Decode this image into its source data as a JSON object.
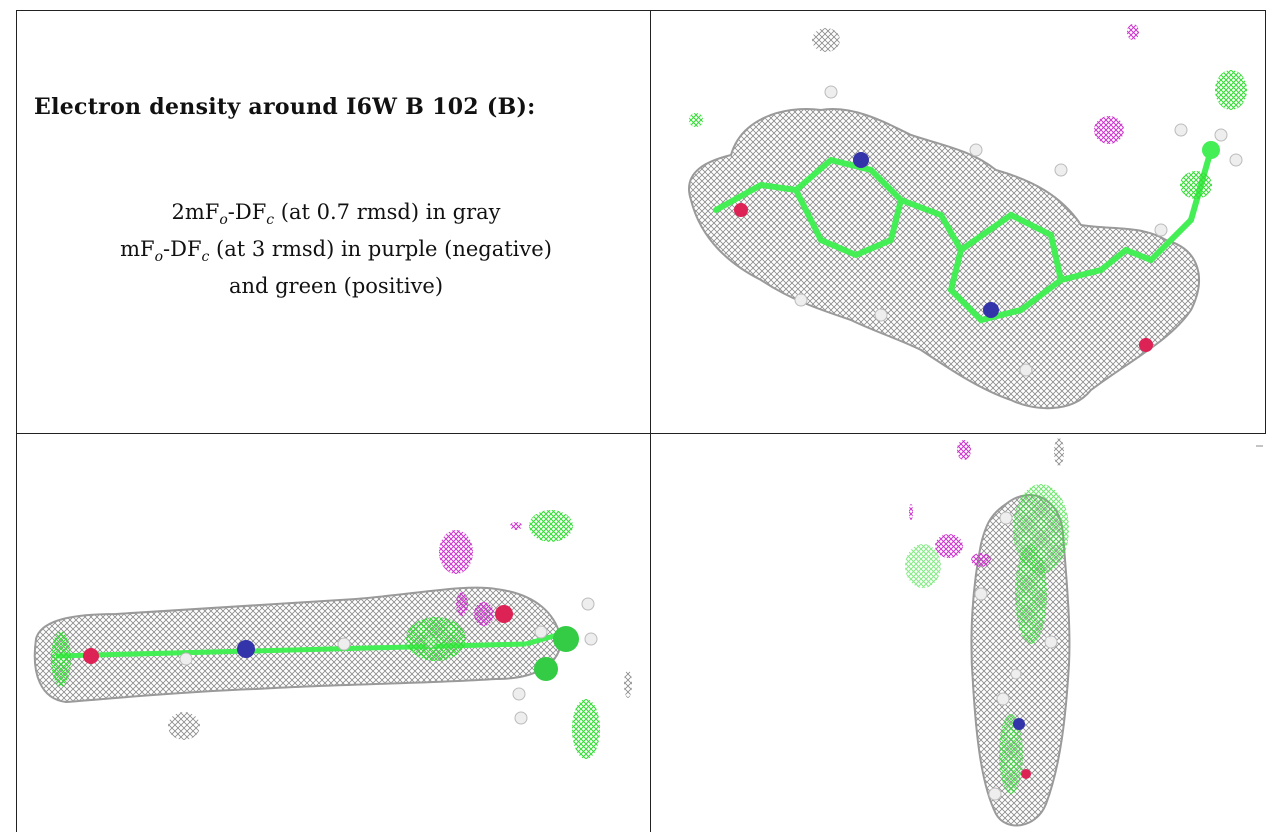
{
  "header": {
    "title": "Electron density around I6W B 102 (B):"
  },
  "legend": {
    "line1": {
      "prefix": "2mF",
      "sub1": "o",
      "mid": "-DF",
      "sub2": "c",
      "suffix": " (at 0.7 rmsd) in gray"
    },
    "line2": {
      "prefix": "mF",
      "sub1": "o",
      "mid": "-DF",
      "sub2": "c",
      "suffix": " (at 3 rmsd) in purple (negative)"
    },
    "line3": "and green (positive)"
  },
  "colors": {
    "density_2fofc": "#8a8a8a",
    "difference_negative": "#cc33cc",
    "difference_positive": "#33dd33",
    "carbon": "#44ee55",
    "nitrogen": "#3333aa",
    "oxygen": "#dd2255",
    "hydrogen": "#eeeeee"
  },
  "panels": {
    "view_top": "ligand-view-top-right",
    "view_side": "ligand-view-bottom-left",
    "view_end": "ligand-view-bottom-right"
  }
}
